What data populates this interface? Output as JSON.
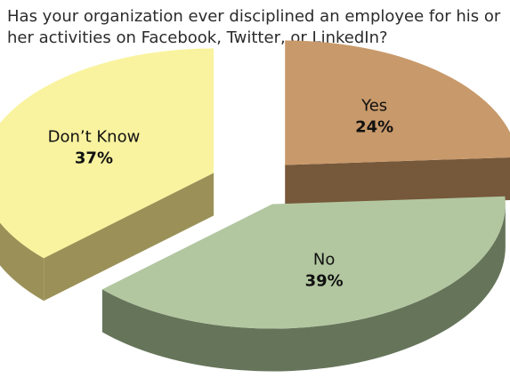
{
  "chart_data": {
    "type": "pie",
    "title": "Has your organization ever disciplined an employee for his or her activities on Facebook, Twitter, or LinkedIn?",
    "slices": [
      {
        "label": "Yes",
        "value": 24,
        "value_label": "24%",
        "top_color": "#c8996a",
        "side_color": "#76583a"
      },
      {
        "label": "No",
        "value": 39,
        "value_label": "39%",
        "top_color": "#b2c7a0",
        "side_color": "#66755a"
      },
      {
        "label": "Don’t Know",
        "value": 37,
        "value_label": "37%",
        "top_color": "#f9f39f",
        "side_color": "#9b9158"
      }
    ],
    "exploded": true,
    "style": "3d"
  }
}
